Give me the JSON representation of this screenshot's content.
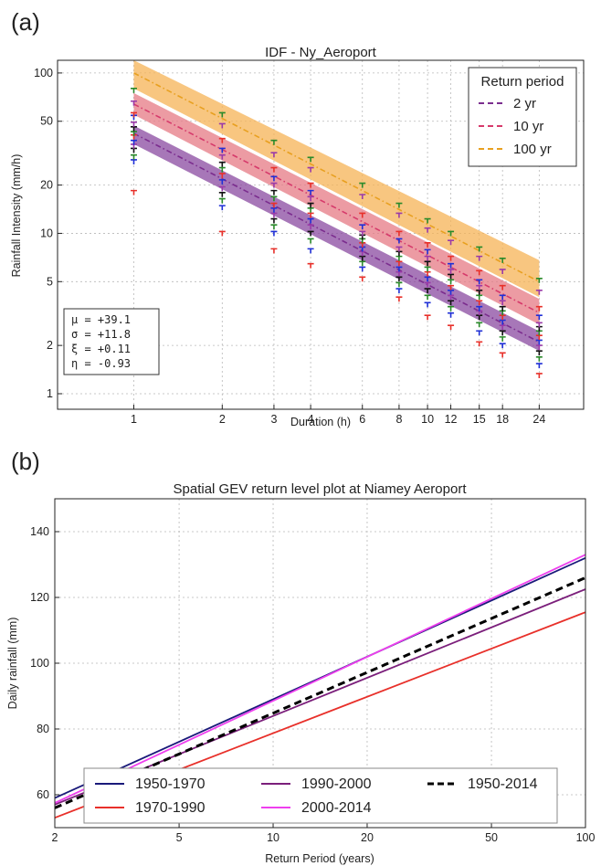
{
  "panel_a": {
    "label": "(a)"
  },
  "panel_b": {
    "label": "(b)"
  },
  "chart_data": [
    {
      "type": "scatter",
      "title": "IDF - Ny_Aeroport",
      "xlabel": "Duration (h)",
      "ylabel": "Rainfall Intensity (mm/h)",
      "x_scale": "log",
      "y_scale": "log",
      "xlim": [
        0.55,
        34
      ],
      "ylim": [
        0.8,
        120
      ],
      "x_ticks": [
        1,
        2,
        3,
        4,
        6,
        8,
        10,
        12,
        15,
        18,
        24
      ],
      "x_tick_labels": [
        "1",
        "2",
        "3",
        "4",
        "6",
        "8",
        "10",
        "12",
        "15",
        "18",
        "24"
      ],
      "y_ticks": [
        1,
        2,
        5,
        10,
        20,
        50,
        100
      ],
      "y_tick_labels": [
        "1",
        "2",
        "5",
        "10",
        "20",
        "50",
        "100"
      ],
      "grid": true,
      "legend": {
        "title": "Return period",
        "placement": "top-right",
        "entries": [
          "2 yr",
          "10 yr",
          "100 yr"
        ]
      },
      "series": [
        {
          "name": "2 yr",
          "color": "#7b2d8e",
          "band_color": "#8a4aa0",
          "values_at_1h": 42,
          "values_at_24h": 2.1,
          "band_low_1h": 36,
          "band_high_1h": 47,
          "band_low_24h": 1.85,
          "band_high_24h": 2.45
        },
        {
          "name": "10 yr",
          "color": "#d63a6b",
          "band_color": "#e57a84",
          "values_at_1h": 64,
          "values_at_24h": 3.2,
          "band_low_1h": 55,
          "band_high_1h": 75,
          "band_low_24h": 2.7,
          "band_high_24h": 3.9
        },
        {
          "name": "100 yr",
          "color": "#e8a020",
          "band_color": "#f6b356",
          "values_at_1h": 100,
          "values_at_24h": 5.0,
          "band_low_1h": 80,
          "band_high_1h": 125,
          "band_low_24h": 4.0,
          "band_high_24h": 6.8
        }
      ],
      "observations": [
        {
          "x": 1,
          "values": [
            18,
            28,
            30,
            33,
            35,
            37,
            40,
            42,
            45,
            48,
            53,
            55,
            65,
            78
          ]
        },
        {
          "x": 2,
          "values": [
            10,
            14.5,
            16,
            17.5,
            19,
            21,
            23,
            25,
            27,
            30,
            33,
            38,
            47,
            55
          ]
        },
        {
          "x": 3,
          "values": [
            7.8,
            10,
            11,
            12,
            13,
            14,
            15,
            16.5,
            18,
            20,
            22,
            25,
            31,
            37
          ]
        },
        {
          "x": 4,
          "values": [
            6.3,
            7.8,
            9,
            10,
            11,
            12,
            13,
            14,
            15,
            16.5,
            18,
            20,
            25,
            29
          ]
        },
        {
          "x": 6,
          "values": [
            5.2,
            6,
            6.5,
            7,
            7.5,
            8,
            8.5,
            9,
            9.5,
            10,
            11,
            13,
            17,
            20
          ]
        },
        {
          "x": 8,
          "values": [
            3.9,
            4.4,
            4.8,
            5.2,
            5.6,
            6,
            6.5,
            7,
            7.5,
            8,
            9,
            10,
            13,
            15
          ]
        },
        {
          "x": 10,
          "values": [
            3.0,
            3.6,
            4,
            4.4,
            4.8,
            5.2,
            5.6,
            6,
            6.5,
            7,
            7.7,
            8.5,
            10.5,
            12
          ]
        },
        {
          "x": 12,
          "values": [
            2.6,
            3.1,
            3.4,
            3.7,
            4,
            4.3,
            4.6,
            5,
            5.4,
            5.8,
            6.3,
            7,
            8.8,
            10
          ]
        },
        {
          "x": 15,
          "values": [
            2.05,
            2.4,
            2.7,
            3,
            3.2,
            3.4,
            3.7,
            4,
            4.3,
            4.6,
            5,
            5.7,
            7,
            8
          ]
        },
        {
          "x": 18,
          "values": [
            1.75,
            2,
            2.2,
            2.4,
            2.6,
            2.8,
            3,
            3.2,
            3.4,
            3.7,
            4,
            4.6,
            5.8,
            6.8
          ]
        },
        {
          "x": 24,
          "values": [
            1.3,
            1.5,
            1.65,
            1.8,
            1.95,
            2.1,
            2.25,
            2.4,
            2.55,
            2.7,
            3,
            3.4,
            4.3,
            5.1
          ]
        }
      ],
      "observation_colors": [
        "#e8302a",
        "#1f2fd6",
        "#2a8a2a",
        "#111111",
        "#9a3aa8",
        "#1f2fd6",
        "#e8302a",
        "#2a8a2a",
        "#111111",
        "#9a3aa8",
        "#1f2fd6",
        "#e8302a",
        "#9a3aa8",
        "#2a8a2a"
      ],
      "parameters": [
        {
          "symbol": "μ",
          "value": "+39.1"
        },
        {
          "symbol": "σ",
          "value": "+11.8"
        },
        {
          "symbol": "ξ",
          "value": "+0.11"
        },
        {
          "symbol": "η",
          "value": "-0.93"
        }
      ]
    },
    {
      "type": "line",
      "title": "Spatial GEV return level plot at Niamey Aeroport",
      "xlabel": "Return Period (years)",
      "ylabel": "Daily rainfall (mm)",
      "x_scale": "log",
      "xlim": [
        2,
        100
      ],
      "ylim": [
        50,
        150
      ],
      "x_ticks": [
        2,
        5,
        10,
        20,
        50,
        100
      ],
      "x_tick_labels": [
        "2",
        "5",
        "10",
        "20",
        "50",
        "100"
      ],
      "y_ticks": [
        60,
        80,
        100,
        120,
        140
      ],
      "y_tick_labels": [
        "60",
        "80",
        "100",
        "120",
        "140"
      ],
      "grid": true,
      "legend": {
        "placement": "bottom-center",
        "columns": 3
      },
      "series": [
        {
          "name": "1950-1970",
          "color": "#1a1a7a",
          "dash": "solid",
          "x": [
            2,
            100
          ],
          "values": [
            59,
            132
          ]
        },
        {
          "name": "1970-1990",
          "color": "#e8302a",
          "dash": "solid",
          "x": [
            2,
            100
          ],
          "values": [
            53,
            115.5
          ]
        },
        {
          "name": "1990-2000",
          "color": "#7b1f7b",
          "dash": "solid",
          "x": [
            2,
            100
          ],
          "values": [
            57,
            122.5
          ]
        },
        {
          "name": "2000-2014",
          "color": "#ee3fee",
          "dash": "solid",
          "x": [
            2,
            100
          ],
          "values": [
            57.5,
            133
          ]
        },
        {
          "name": "1950-2014",
          "color": "#000000",
          "dash": "dashed",
          "x": [
            2,
            100
          ],
          "values": [
            56,
            126
          ]
        }
      ]
    }
  ]
}
